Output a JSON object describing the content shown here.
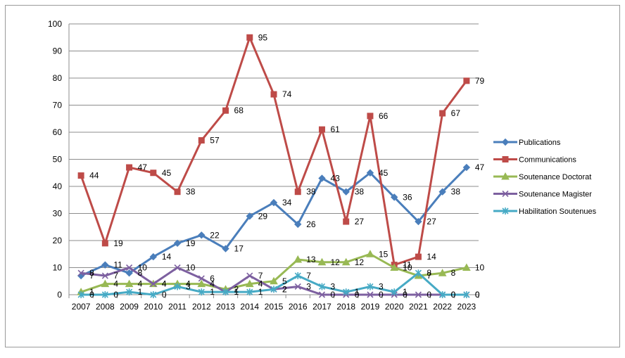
{
  "chart_data": {
    "type": "line",
    "title": "",
    "xlabel": "",
    "ylabel": "",
    "ylim": [
      0,
      100
    ],
    "yticks": [
      0,
      10,
      20,
      30,
      40,
      50,
      60,
      70,
      80,
      90,
      100
    ],
    "grid": true,
    "legend_position": "right",
    "categories": [
      "2007",
      "2008",
      "2009",
      "2010",
      "2011",
      "2012",
      "2013",
      "2014",
      "2015",
      "2016",
      "2017",
      "2018",
      "2019",
      "2020",
      "2021",
      "2022",
      "2023"
    ],
    "series": [
      {
        "name": "Publications",
        "color": "#4a7ebb",
        "marker": "diamond",
        "values": [
          7,
          11,
          8,
          14,
          19,
          22,
          17,
          29,
          34,
          26,
          43,
          38,
          45,
          36,
          27,
          38,
          47
        ]
      },
      {
        "name": "Communications",
        "color": "#be4b48",
        "marker": "square",
        "values": [
          44,
          19,
          47,
          45,
          38,
          57,
          68,
          95,
          74,
          38,
          61,
          27,
          66,
          11,
          14,
          67,
          79
        ]
      },
      {
        "name": "Soutenance Doctorat",
        "color": "#98b954",
        "marker": "triangle",
        "values": [
          1,
          4,
          4,
          4,
          4,
          4,
          2,
          4,
          5,
          13,
          12,
          12,
          15,
          10,
          7,
          8,
          10
        ]
      },
      {
        "name": "Soutenance Magister",
        "color": "#7d60a0",
        "marker": "x",
        "values": [
          8,
          7,
          10,
          4,
          10,
          6,
          1,
          7,
          2,
          3,
          0,
          0,
          0,
          0,
          0,
          0,
          0
        ]
      },
      {
        "name": "Habilitation Soutenues",
        "color": "#46aac5",
        "marker": "star",
        "values": [
          0,
          0,
          1,
          0,
          3,
          1,
          1,
          1,
          2,
          7,
          3,
          1,
          3,
          1,
          8,
          0,
          0
        ]
      }
    ]
  }
}
